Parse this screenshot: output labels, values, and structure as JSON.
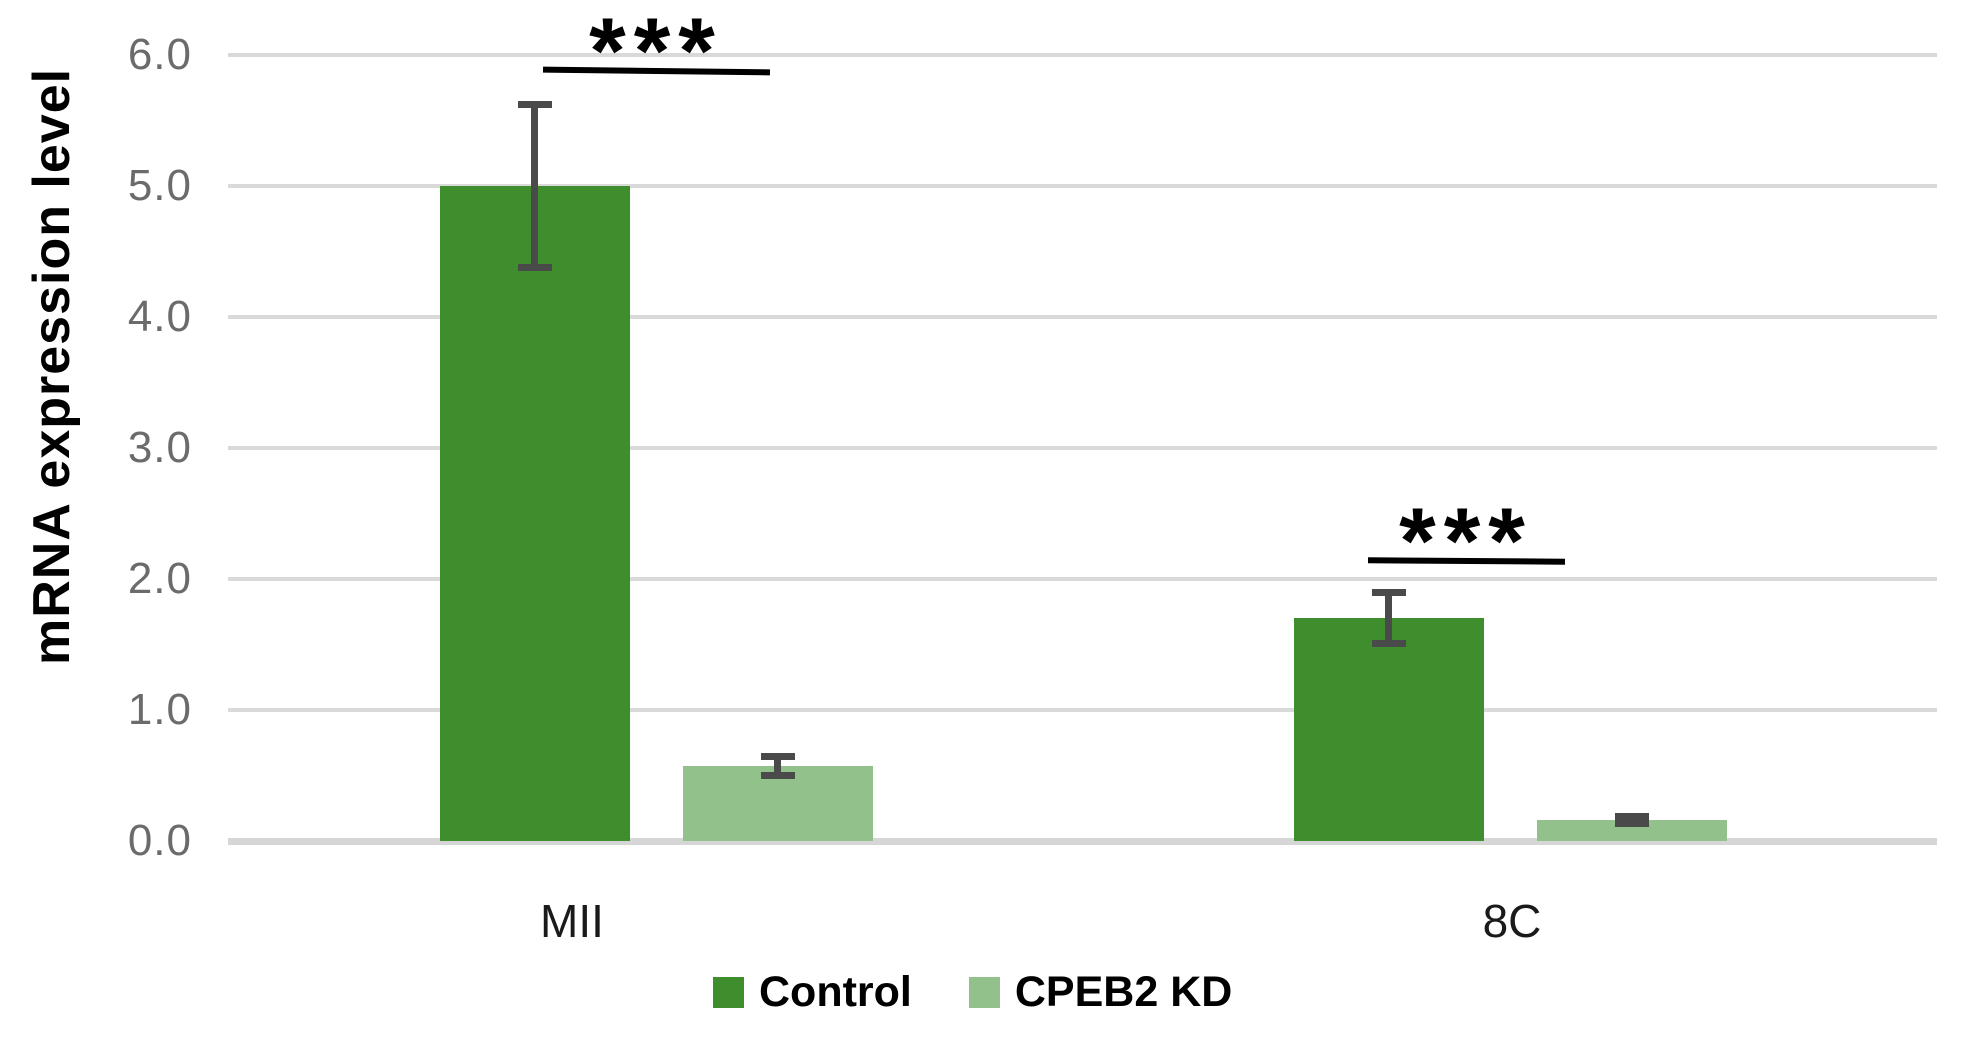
{
  "chart_data": {
    "type": "bar",
    "title": "",
    "xlabel": "",
    "ylabel": "mRNA expression level",
    "categories": [
      "MII",
      "8C"
    ],
    "series": [
      {
        "name": "Control",
        "color": "#3E8E2E",
        "values": [
          5.0,
          1.7
        ],
        "errors": [
          0.65,
          0.22
        ]
      },
      {
        "name": "CPEB2 KD",
        "color": "#93C18B",
        "values": [
          0.57,
          0.16
        ],
        "errors": [
          0.1,
          0.05
        ]
      }
    ],
    "ylim": [
      0,
      6
    ],
    "yticks": [
      "6.0",
      "5.0",
      "4.0",
      "3.0",
      "2.0",
      "1.0",
      "0.0"
    ],
    "grid": true,
    "legend_position": "bottom",
    "annotations": [
      {
        "category": "MII",
        "text": "***",
        "line_y": 5.9
      },
      {
        "category": "8C",
        "text": "***",
        "line_y": 2.16
      }
    ]
  },
  "colors": {
    "gridline": "#d9d9d9",
    "axis_line": "#d6d6d6",
    "error_bar": "#4a4a4a",
    "tick_label": "#6b6b6b",
    "significance": "#000000"
  }
}
